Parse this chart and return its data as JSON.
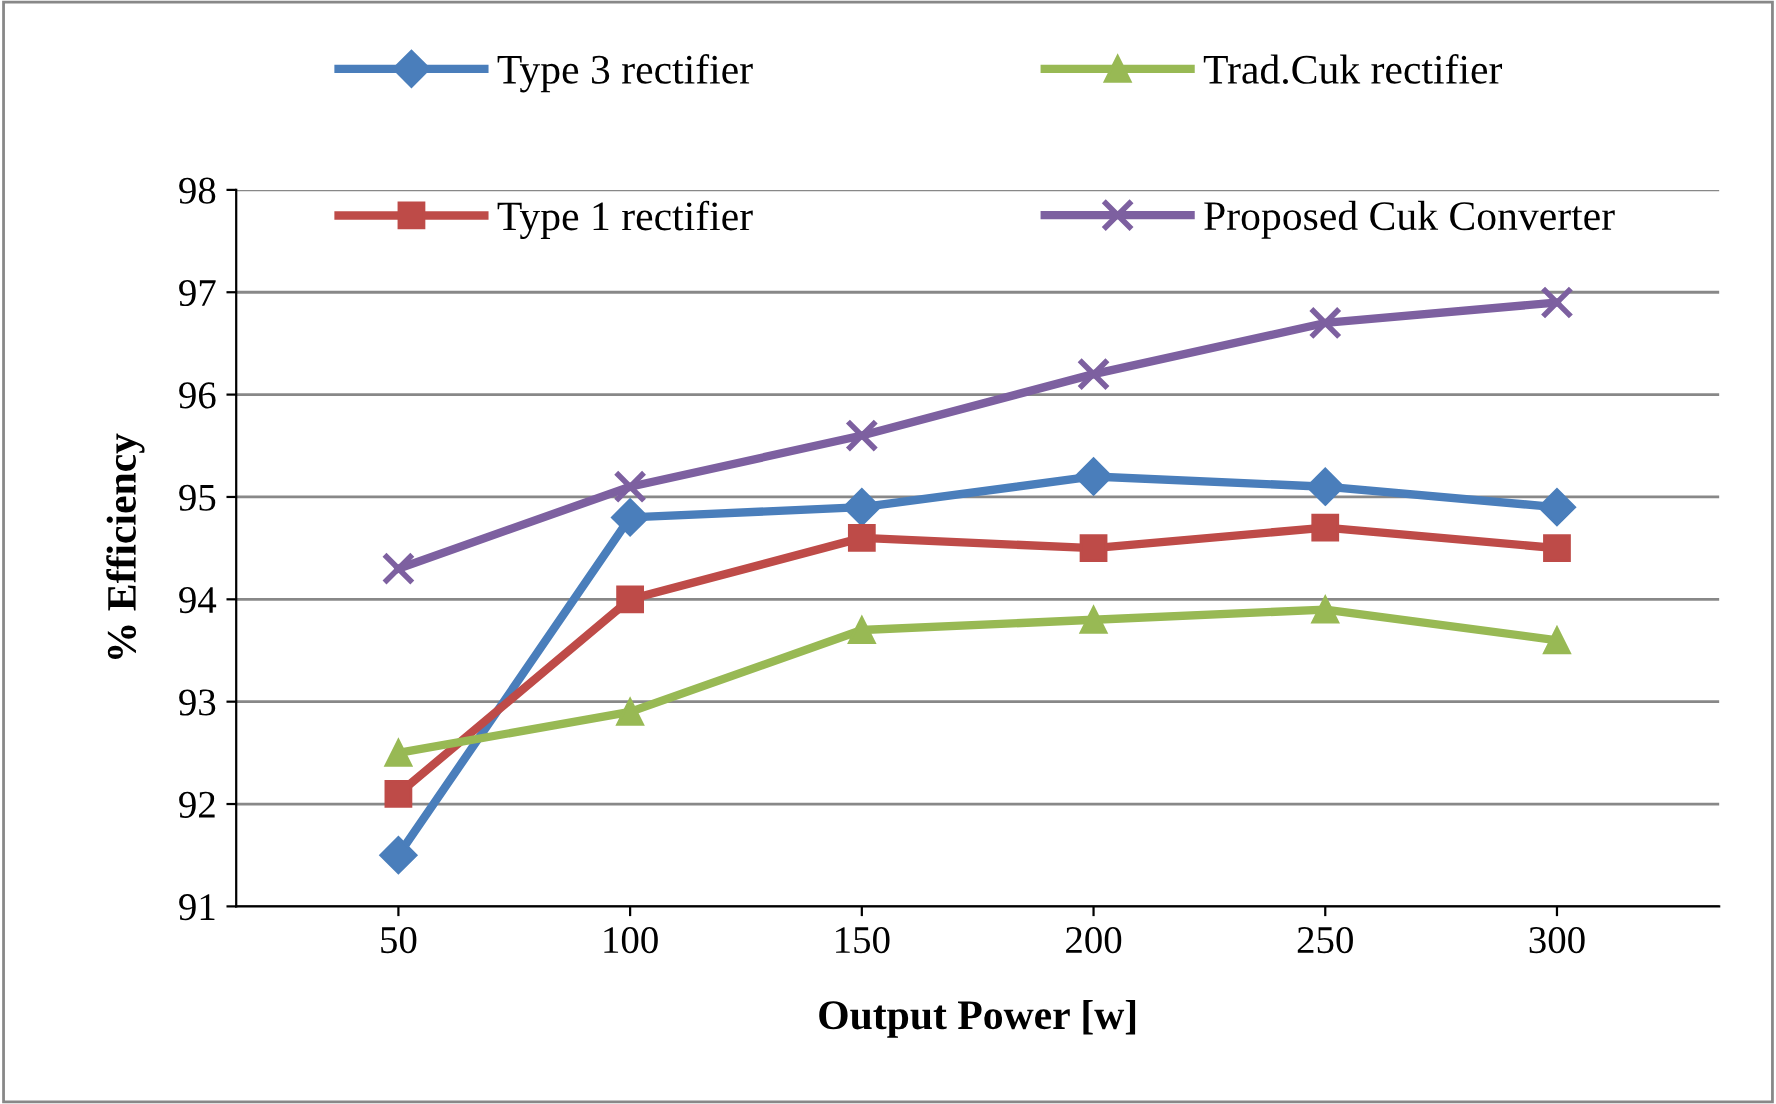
{
  "chart_data": {
    "type": "line",
    "xlabel": "Output Power [w]",
    "ylabel": "% Efficiency",
    "categories": [
      "50",
      "100",
      "150",
      "200",
      "250",
      "300"
    ],
    "series": [
      {
        "name": "Type 3 rectifier",
        "color": "#4a7ebb",
        "marker": "diamond",
        "values": [
          91.5,
          94.8,
          94.9,
          95.2,
          95.1,
          94.9
        ]
      },
      {
        "name": "Type 1 rectifier",
        "color": "#be4b48",
        "marker": "square",
        "values": [
          92.1,
          94.0,
          94.6,
          94.5,
          94.7,
          94.5
        ]
      },
      {
        "name": "Trad.Cuk rectifier",
        "color": "#98b954",
        "marker": "triangle",
        "values": [
          92.5,
          92.9,
          93.7,
          93.8,
          93.9,
          93.6
        ]
      },
      {
        "name": "Proposed Cuk Converter",
        "color": "#7d60a0",
        "marker": "cross",
        "values": [
          94.3,
          95.1,
          95.6,
          96.2,
          96.7,
          96.9
        ]
      }
    ],
    "ylim": [
      91,
      98
    ],
    "yticks": [
      91,
      92,
      93,
      94,
      95,
      96,
      97,
      98
    ],
    "grid": "y",
    "legend": "top",
    "line_style": "solid"
  }
}
